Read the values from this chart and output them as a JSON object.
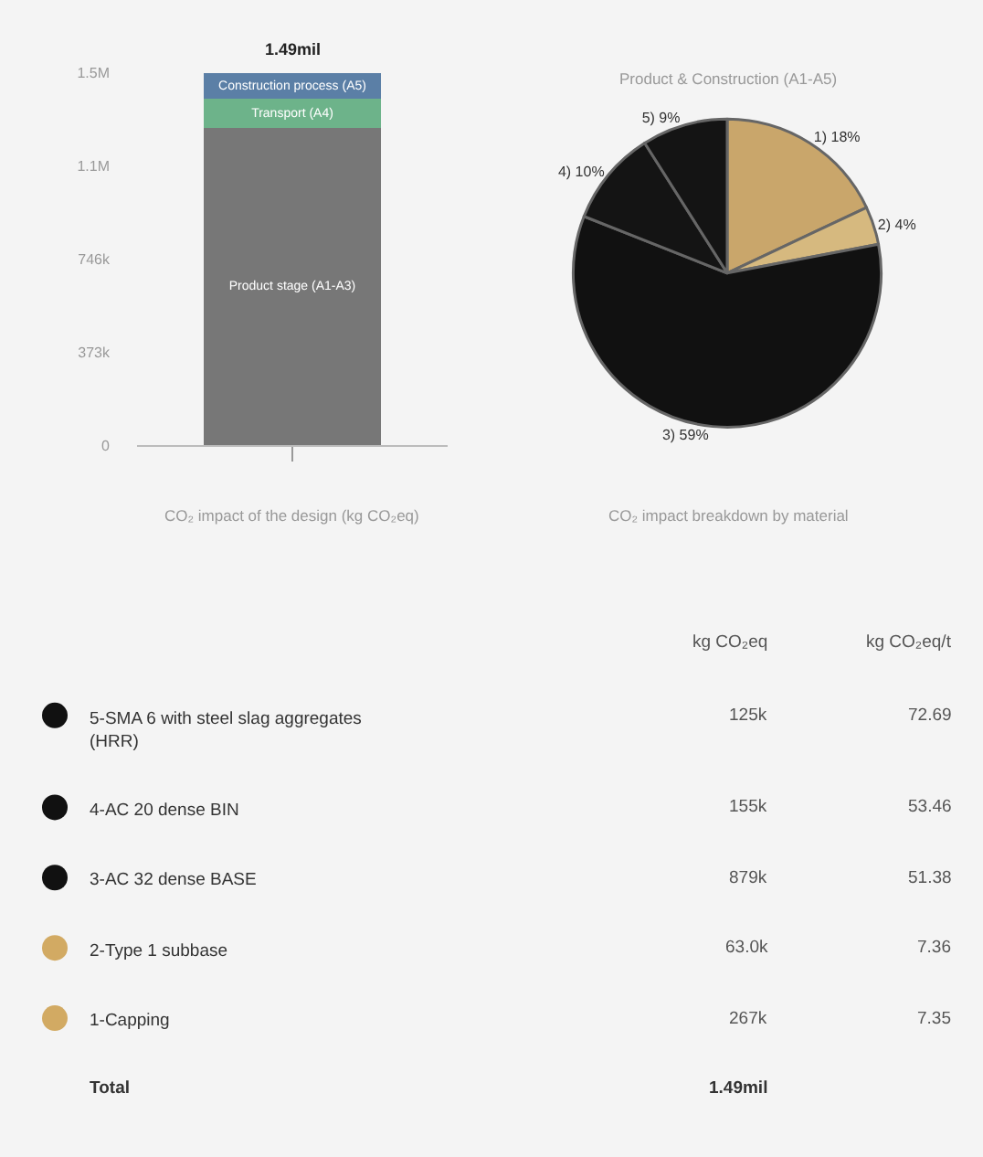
{
  "chart_data": [
    {
      "type": "bar",
      "stacked": true,
      "categories": [
        null
      ],
      "xlabel": "CO₂ impact of the design (kg CO₂eq)",
      "series": [
        {
          "name": "Product stage (A1-A3)",
          "color": "#777777",
          "values": [
            1270000
          ]
        },
        {
          "name": "Transport (A4)",
          "color": "#6db38a",
          "values": [
            115000
          ]
        },
        {
          "name": "Construction process (A5)",
          "color": "#5b7fa6",
          "values": [
            105000
          ]
        }
      ],
      "annotations": [
        "1.49mil"
      ],
      "ylim": [
        0,
        1492000
      ],
      "yticks": [
        0,
        {
          "value": 373000,
          "label": "373k"
        },
        {
          "value": 746000,
          "label": "746k"
        },
        {
          "value": 1119000,
          "label": "1.1M"
        },
        {
          "value": 1492000,
          "label": "1.5M"
        }
      ],
      "grid": false
    },
    {
      "type": "pie",
      "title": "Product & Construction (A1-A5)",
      "xlabel": "CO₂ impact breakdown by material",
      "categories": [
        "1)",
        "2)",
        "3)",
        "4)",
        "5)"
      ],
      "values": [
        18,
        4,
        59,
        10,
        9
      ],
      "colors": [
        "#c9a66b",
        "#d6b97f",
        "#111111",
        "#141414",
        "#141414"
      ],
      "value_labels": [
        "18%",
        "4%",
        "59%",
        "10%",
        "9%"
      ]
    },
    {
      "type": "other",
      "categories": [
        "5-SMA 6 with steel slag aggregates (HRR)",
        "4-AC 20 dense BIN",
        "3-AC 32 dense BASE",
        "2-Type 1 subbase",
        "1-Capping"
      ],
      "colors": [
        "#111111",
        "#111111",
        "#111111",
        "#d2aa63",
        "#d2aa63"
      ],
      "annotations": [
        "kg CO₂eq",
        "kg CO₂eq/t",
        "125k",
        "72.69",
        "155k",
        "53.46",
        "879k",
        "51.38",
        "63.0k",
        "7.36",
        "267k",
        "7.35",
        "Total",
        "1.49mil"
      ]
    }
  ]
}
